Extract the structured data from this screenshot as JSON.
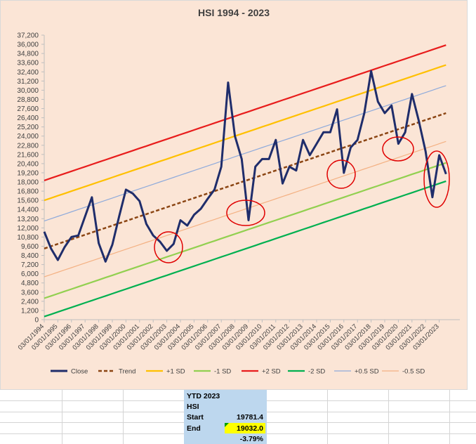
{
  "chart_data": {
    "type": "line",
    "title": "HSI  1994 - 2023",
    "categories": [
      "03/01/1994",
      null,
      "03/01/1995",
      null,
      "03/01/1996",
      null,
      "03/01/1997",
      null,
      "03/01/1998",
      null,
      "03/01/1999",
      null,
      "03/01/2000",
      null,
      "03/01/2001",
      null,
      "03/01/2002",
      null,
      "03/01/2003",
      null,
      "03/01/2004",
      null,
      "03/01/2005",
      null,
      "03/01/2006",
      null,
      "03/01/2007",
      null,
      "03/01/2008",
      null,
      "03/01/2009",
      null,
      "03/01/2010",
      null,
      "03/01/2011",
      null,
      "03/01/2012",
      null,
      "03/01/2013",
      null,
      "03/01/2014",
      null,
      "03/01/2015",
      null,
      "03/01/2016",
      null,
      "03/01/2017",
      null,
      "03/01/2018",
      null,
      "03/01/2019",
      null,
      "03/01/2020",
      null,
      "03/01/2021",
      null,
      "03/01/2022",
      null,
      "03/01/2023",
      null
    ],
    "series": [
      {
        "name": "Close",
        "color": "#1f2d6b",
        "values": [
          11500,
          9300,
          7800,
          9500,
          10800,
          11000,
          13500,
          16000,
          10000,
          7600,
          9800,
          13500,
          17000,
          16500,
          15500,
          12500,
          11000,
          10200,
          9000,
          9900,
          13000,
          12300,
          13700,
          14500,
          15800,
          17000,
          20000,
          31000,
          24000,
          21000,
          13000,
          20000,
          21000,
          21000,
          23500,
          17800,
          20000,
          19500,
          23500,
          21500,
          23000,
          24500,
          24500,
          27500,
          19200,
          22500,
          23500,
          27000,
          32500,
          28500,
          27000,
          28000,
          23000,
          24500,
          29500,
          26000,
          22000,
          16000,
          21500,
          19032
        ]
      },
      {
        "name": "Trend",
        "color": "#8b4513",
        "dashed": true,
        "values": [
          9300,
          9600,
          9900,
          10200,
          10500,
          10800,
          11100,
          11400,
          11700,
          12000,
          12300,
          12600,
          12900,
          13200,
          13500,
          13800,
          14100,
          14400,
          14700,
          15000,
          15300,
          15600,
          15900,
          16200,
          16500,
          16800,
          17100,
          17400,
          17700,
          18000,
          18300,
          18600,
          18900,
          19200,
          19500,
          19800,
          20100,
          20400,
          20700,
          21000,
          21300,
          21600,
          21900,
          22200,
          22500,
          22800,
          23100,
          23400,
          23700,
          24000,
          24300,
          24600,
          24900,
          25200,
          25500,
          25800,
          26100,
          26400,
          26700,
          27000
        ]
      },
      {
        "name": "+1 SD",
        "color": "#ffc000",
        "values": [
          15600,
          15900,
          16200,
          16500,
          16800,
          17100,
          17400,
          17700,
          18000,
          18300,
          18600,
          18900,
          19200,
          19500,
          19800,
          20100,
          20400,
          20700,
          21000,
          21300,
          21600,
          21900,
          22200,
          22500,
          22800,
          23100,
          23400,
          23700,
          24000,
          24300,
          24600,
          24900,
          25200,
          25500,
          25800,
          26100,
          26400,
          26700,
          27000,
          27300,
          27600,
          27900,
          28200,
          28500,
          28800,
          29100,
          29400,
          29700,
          30000,
          30300,
          30600,
          30900,
          31200,
          31500,
          31800,
          32100,
          32400,
          32700,
          33000,
          33300
        ]
      },
      {
        "name": "-1 SD",
        "color": "#92d050",
        "values": [
          2800,
          3100,
          3400,
          3700,
          4000,
          4300,
          4600,
          4900,
          5200,
          5500,
          5800,
          6100,
          6400,
          6700,
          7000,
          7300,
          7600,
          7900,
          8200,
          8500,
          8800,
          9100,
          9400,
          9700,
          10000,
          10300,
          10600,
          10900,
          11200,
          11500,
          11800,
          12100,
          12400,
          12700,
          13000,
          13300,
          13600,
          13900,
          14200,
          14500,
          14800,
          15100,
          15400,
          15700,
          16000,
          16300,
          16600,
          16900,
          17200,
          17500,
          17800,
          18100,
          18400,
          18700,
          19000,
          19300,
          19600,
          19900,
          20200,
          20500
        ]
      },
      {
        "name": "+2 SD",
        "color": "#e81c1c",
        "values": [
          18200,
          18500,
          18800,
          19100,
          19400,
          19700,
          20000,
          20300,
          20600,
          20900,
          21200,
          21500,
          21800,
          22100,
          22400,
          22700,
          23000,
          23300,
          23600,
          23900,
          24200,
          24500,
          24800,
          25100,
          25400,
          25700,
          26000,
          26300,
          26600,
          26900,
          27200,
          27500,
          27800,
          28100,
          28400,
          28700,
          29000,
          29300,
          29600,
          29900,
          30200,
          30500,
          30800,
          31100,
          31400,
          31700,
          32000,
          32300,
          32600,
          32900,
          33200,
          33500,
          33800,
          34100,
          34400,
          34700,
          35000,
          35300,
          35600,
          35900
        ]
      },
      {
        "name": "-2 SD",
        "color": "#00b050",
        "values": [
          400,
          700,
          1000,
          1300,
          1600,
          1900,
          2200,
          2500,
          2800,
          3100,
          3400,
          3700,
          4000,
          4300,
          4600,
          4900,
          5200,
          5500,
          5800,
          6100,
          6400,
          6700,
          7000,
          7300,
          7600,
          7900,
          8200,
          8500,
          8800,
          9100,
          9400,
          9700,
          10000,
          10300,
          10600,
          10900,
          11200,
          11500,
          11800,
          12100,
          12400,
          12700,
          13000,
          13300,
          13600,
          13900,
          14200,
          14500,
          14800,
          15100,
          15400,
          15700,
          16000,
          16300,
          16600,
          16900,
          17200,
          17500,
          17800,
          18100
        ]
      },
      {
        "name": "+0.5 SD",
        "color": "#8eaadb",
        "values": [
          12900,
          13200,
          13500,
          13800,
          14100,
          14400,
          14700,
          15000,
          15300,
          15600,
          15900,
          16200,
          16500,
          16800,
          17100,
          17400,
          17700,
          18000,
          18300,
          18600,
          18900,
          19200,
          19500,
          19800,
          20100,
          20400,
          20700,
          21000,
          21300,
          21600,
          21900,
          22200,
          22500,
          22800,
          23100,
          23400,
          23700,
          24000,
          24300,
          24600,
          24900,
          25200,
          25500,
          25800,
          26100,
          26400,
          26700,
          27000,
          27300,
          27600,
          27900,
          28200,
          28500,
          28800,
          29100,
          29400,
          29700,
          30000,
          30300,
          30600
        ]
      },
      {
        "name": "-0.5 SD",
        "color": "#f4b183",
        "values": [
          5600,
          5900,
          6200,
          6500,
          6800,
          7100,
          7400,
          7700,
          8000,
          8300,
          8600,
          8900,
          9200,
          9500,
          9800,
          10100,
          10400,
          10700,
          11000,
          11300,
          11600,
          11900,
          12200,
          12500,
          12800,
          13100,
          13400,
          13700,
          14000,
          14300,
          14600,
          14900,
          15200,
          15500,
          15800,
          16100,
          16400,
          16700,
          17000,
          17300,
          17600,
          17900,
          18200,
          18500,
          18800,
          19100,
          19400,
          19700,
          20000,
          20300,
          20600,
          20900,
          21200,
          21500,
          21800,
          22100,
          22400,
          22700,
          23000,
          23300
        ]
      }
    ],
    "ylim": [
      0,
      37200
    ],
    "yticks": [
      0,
      {
        "value": 1200,
        "label": "1,200"
      },
      {
        "value": 2400,
        "label": "2,400"
      },
      {
        "value": 3600,
        "label": "3,600"
      },
      {
        "value": 4800,
        "label": "4,800"
      },
      {
        "value": 6000,
        "label": "6,000"
      },
      {
        "value": 7200,
        "label": "7,200"
      },
      {
        "value": 8400,
        "label": "8,400"
      },
      {
        "value": 9600,
        "label": "9,600"
      },
      {
        "value": 10800,
        "label": "10,800"
      },
      {
        "value": 12000,
        "label": "12,000"
      },
      {
        "value": 13200,
        "label": "13,200"
      },
      {
        "value": 14400,
        "label": "14,400"
      },
      {
        "value": 15600,
        "label": "15,600"
      },
      {
        "value": 16800,
        "label": "16,800"
      },
      {
        "value": 18000,
        "label": "18,000"
      },
      {
        "value": 19200,
        "label": "19,200"
      },
      {
        "value": 20400,
        "label": "20,400"
      },
      {
        "value": 21600,
        "label": "21,600"
      },
      {
        "value": 22800,
        "label": "22,800"
      },
      {
        "value": 24000,
        "label": "24,000"
      },
      {
        "value": 25200,
        "label": "25,200"
      },
      {
        "value": 26400,
        "label": "26,400"
      },
      {
        "value": 27600,
        "label": "27,600"
      },
      {
        "value": 28800,
        "label": "28,800"
      },
      {
        "value": 30000,
        "label": "30,000"
      },
      {
        "value": 31200,
        "label": "31,200"
      },
      {
        "value": 32400,
        "label": "32,400"
      },
      {
        "value": 33600,
        "label": "33,600"
      },
      {
        "value": 34800,
        "label": "34,800"
      },
      {
        "value": 36000,
        "label": "36,000"
      },
      {
        "value": 37200,
        "label": "37,200"
      }
    ],
    "grid": false,
    "legend": "bottom"
  },
  "ytd": {
    "title": "YTD 2023",
    "index": "HSI",
    "start_label": "Start",
    "start": "19781.4",
    "end_label": "End",
    "end": "19032.0",
    "change": "-3.79%"
  }
}
